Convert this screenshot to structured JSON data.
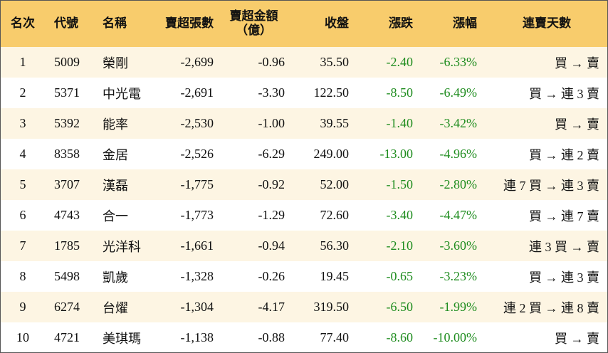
{
  "table": {
    "header": [
      "名次",
      "代號",
      "名稱",
      "賣超張數",
      "賣超金額\n（億）",
      "收盤",
      "漲跌",
      "漲幅",
      "連賣天數"
    ],
    "rows": [
      [
        "1",
        "5009",
        "榮剛",
        "-2,699",
        "-0.96",
        "35.50",
        "-2.40",
        "-6.33%",
        "買 → 賣"
      ],
      [
        "2",
        "5371",
        "中光電",
        "-2,691",
        "-3.30",
        "122.50",
        "-8.50",
        "-6.49%",
        "買 → 連 3 賣"
      ],
      [
        "3",
        "5392",
        "能率",
        "-2,530",
        "-1.00",
        "39.55",
        "-1.40",
        "-3.42%",
        "買 → 賣"
      ],
      [
        "4",
        "8358",
        "金居",
        "-2,526",
        "-6.29",
        "249.00",
        "-13.00",
        "-4.96%",
        "買 → 連 2 賣"
      ],
      [
        "5",
        "3707",
        "漢磊",
        "-1,775",
        "-0.92",
        "52.00",
        "-1.50",
        "-2.80%",
        "連 7 買 → 連 3 賣"
      ],
      [
        "6",
        "4743",
        "合一",
        "-1,773",
        "-1.29",
        "72.60",
        "-3.40",
        "-4.47%",
        "買 → 連 7 賣"
      ],
      [
        "7",
        "1785",
        "光洋科",
        "-1,661",
        "-0.94",
        "56.30",
        "-2.10",
        "-3.60%",
        "連 3 買 → 賣"
      ],
      [
        "8",
        "5498",
        "凱歲",
        "-1,328",
        "-0.26",
        "19.45",
        "-0.65",
        "-3.23%",
        "買 → 連 3 賣"
      ],
      [
        "9",
        "6274",
        "台燿",
        "-1,304",
        "-4.17",
        "319.50",
        "-6.50",
        "-1.99%",
        "連 2 買 → 連 8 賣"
      ],
      [
        "10",
        "4721",
        "美琪瑪",
        "-1,138",
        "-0.88",
        "77.40",
        "-8.60",
        "-10.00%",
        "買 → 賣"
      ]
    ]
  }
}
